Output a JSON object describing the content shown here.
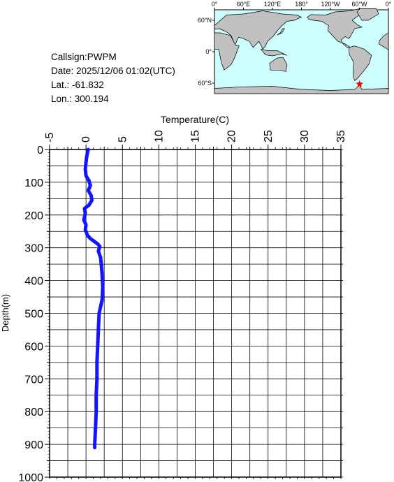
{
  "info": {
    "callsign": "Callsign:PWPM",
    "date": "Date:  2025/12/06 01:02(UTC)",
    "lat": "Lat.:  -61.832",
    "lon": "Lon.:  300.194"
  },
  "map": {
    "lon_labels": [
      "0°",
      "60°E",
      "120°E",
      "180°",
      "120°W",
      "60°W",
      "0°"
    ],
    "lat_labels": [
      "60°N",
      "0°",
      "60°S"
    ],
    "ocean_color": "#cdfdfd",
    "land_color": "#c0c0c0",
    "marker": {
      "lat": -61.832,
      "lon": 300.194,
      "color": "#ff0000",
      "symbol": "star"
    }
  },
  "colors": {
    "profile": "#1414ff"
  },
  "chart_data": {
    "type": "line",
    "xlabel": "Temperature(C)",
    "ylabel": "Depth(m)",
    "xlim": [
      -5,
      35
    ],
    "ylim": [
      1000,
      0
    ],
    "x_ticks": [
      -5,
      0,
      5,
      10,
      15,
      20,
      25,
      30,
      35
    ],
    "y_ticks": [
      0,
      100,
      200,
      300,
      400,
      500,
      600,
      700,
      800,
      900,
      1000
    ],
    "x_ticklabels": [
      "-5",
      "0",
      "5",
      "10",
      "15",
      "20",
      "25",
      "30",
      "35"
    ],
    "y_ticklabels": [
      "0",
      "100",
      "200",
      "300",
      "400",
      "500",
      "600",
      "700",
      "800",
      "900",
      "1000"
    ],
    "grid": true,
    "series": [
      {
        "values": [
          [
            0.3,
            0
          ],
          [
            0.1,
            20
          ],
          [
            0.0,
            40
          ],
          [
            -0.1,
            60
          ],
          [
            0.0,
            80
          ],
          [
            0.4,
            95
          ],
          [
            0.6,
            110
          ],
          [
            0.3,
            125
          ],
          [
            0.7,
            140
          ],
          [
            0.8,
            155
          ],
          [
            0.4,
            170
          ],
          [
            -0.2,
            180
          ],
          [
            -0.1,
            195
          ],
          [
            -0.3,
            215
          ],
          [
            0.0,
            230
          ],
          [
            -0.1,
            245
          ],
          [
            0.2,
            262
          ],
          [
            0.6,
            272
          ],
          [
            1.1,
            280
          ],
          [
            1.6,
            288
          ],
          [
            1.9,
            296
          ],
          [
            1.7,
            310
          ],
          [
            2.0,
            330
          ],
          [
            2.1,
            350
          ],
          [
            2.2,
            380
          ],
          [
            2.3,
            420
          ],
          [
            2.2,
            460
          ],
          [
            1.8,
            500
          ],
          [
            1.7,
            550
          ],
          [
            1.6,
            600
          ],
          [
            1.5,
            650
          ],
          [
            1.5,
            700
          ],
          [
            1.4,
            750
          ],
          [
            1.4,
            800
          ],
          [
            1.3,
            850
          ],
          [
            1.2,
            900
          ],
          [
            1.2,
            910
          ]
        ]
      }
    ]
  }
}
